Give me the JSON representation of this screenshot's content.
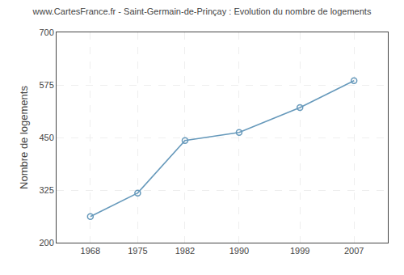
{
  "chart_data": {
    "type": "line",
    "title": "www.CartesFrance.fr - Saint-Germain-de-Prinçay : Evolution du nombre de logements",
    "y_label": "Nombre de logements",
    "x": [
      1968,
      1975,
      1982,
      1990,
      1999,
      2007
    ],
    "values": [
      262,
      318,
      443,
      462,
      521,
      585
    ],
    "xlim": [
      1963,
      2012
    ],
    "xticks": [
      1968,
      1975,
      1982,
      1990,
      1999,
      2007
    ],
    "ylim": [
      200,
      700
    ],
    "yticks": [
      200,
      325,
      450,
      575,
      700
    ],
    "color": "#6699bb",
    "marker": "circle",
    "grid": true
  }
}
